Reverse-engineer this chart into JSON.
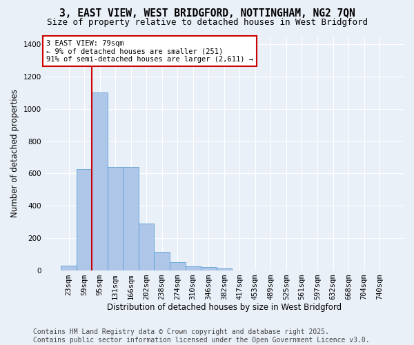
{
  "title_line1": "3, EAST VIEW, WEST BRIDGFORD, NOTTINGHAM, NG2 7QN",
  "title_line2": "Size of property relative to detached houses in West Bridgford",
  "xlabel": "Distribution of detached houses by size in West Bridgford",
  "ylabel": "Number of detached properties",
  "bin_labels": [
    "23sqm",
    "59sqm",
    "95sqm",
    "131sqm",
    "166sqm",
    "202sqm",
    "238sqm",
    "274sqm",
    "310sqm",
    "346sqm",
    "382sqm",
    "417sqm",
    "453sqm",
    "489sqm",
    "525sqm",
    "561sqm",
    "597sqm",
    "632sqm",
    "668sqm",
    "704sqm",
    "740sqm"
  ],
  "bar_values": [
    30,
    625,
    1100,
    640,
    640,
    290,
    115,
    48,
    22,
    20,
    12,
    0,
    0,
    0,
    0,
    0,
    0,
    0,
    0,
    0,
    0
  ],
  "bar_color": "#aec6e8",
  "bar_edge_color": "#5a9fd4",
  "bg_color": "#eaf0f8",
  "grid_color": "#ffffff",
  "vline_color": "#cc0000",
  "annotation_text": "3 EAST VIEW: 79sqm\n← 9% of detached houses are smaller (251)\n91% of semi-detached houses are larger (2,611) →",
  "annotation_box_color": "#ffffff",
  "annotation_box_edge": "#cc0000",
  "ylim": [
    0,
    1450
  ],
  "yticks": [
    0,
    200,
    400,
    600,
    800,
    1000,
    1200,
    1400
  ],
  "footer_line1": "Contains HM Land Registry data © Crown copyright and database right 2025.",
  "footer_line2": "Contains public sector information licensed under the Open Government Licence v3.0.",
  "title_fontsize": 10.5,
  "subtitle_fontsize": 9,
  "footer_fontsize": 7,
  "tick_fontsize": 7.5,
  "ylabel_fontsize": 8.5,
  "xlabel_fontsize": 8.5,
  "annot_fontsize": 7.5
}
